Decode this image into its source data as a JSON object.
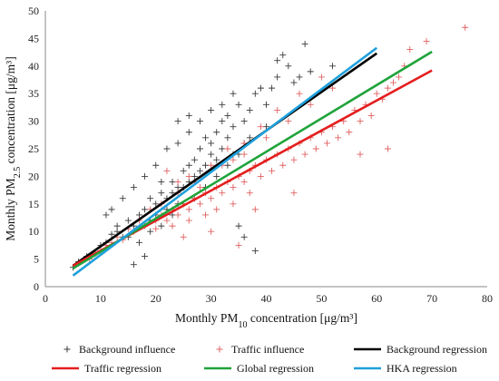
{
  "chart_data": {
    "type": "scatter",
    "title": "",
    "xlabel": {
      "prefix": "Monthly PM",
      "sub": "10",
      "suffix": " concentration [μg/m³]"
    },
    "ylabel": {
      "prefix": "Monthly PM",
      "sub": "2.5",
      "suffix": " concentration [μg/m³]"
    },
    "xlim": [
      0,
      80
    ],
    "ylim": [
      0,
      50
    ],
    "xticks": [
      0,
      10,
      20,
      30,
      40,
      50,
      60,
      70,
      80
    ],
    "yticks": [
      0,
      5,
      10,
      15,
      20,
      25,
      30,
      35,
      40,
      45,
      50
    ],
    "grid": false,
    "legend_position": "bottom",
    "series": [
      {
        "name": "Background influence",
        "kind": "points",
        "marker": "plus",
        "color": "#3a3a3a",
        "points": [
          [
            5,
            3.5
          ],
          [
            6,
            4.5
          ],
          [
            7.5,
            5.5
          ],
          [
            9,
            6
          ],
          [
            10,
            7.5
          ],
          [
            11,
            8
          ],
          [
            12,
            9.5
          ],
          [
            13,
            10
          ],
          [
            14,
            9
          ],
          [
            15,
            12
          ],
          [
            16,
            11
          ],
          [
            17,
            13
          ],
          [
            18,
            14
          ],
          [
            19,
            12
          ],
          [
            20,
            15
          ],
          [
            21,
            17
          ],
          [
            22,
            16
          ],
          [
            23,
            19
          ],
          [
            24,
            18
          ],
          [
            25,
            21
          ],
          [
            26,
            22
          ],
          [
            27,
            20
          ],
          [
            28,
            25
          ],
          [
            29,
            27
          ],
          [
            30,
            24
          ],
          [
            31,
            28
          ],
          [
            32,
            30
          ],
          [
            33,
            31
          ],
          [
            34,
            29
          ],
          [
            35,
            33
          ],
          [
            36,
            30
          ],
          [
            38,
            35
          ],
          [
            40,
            33
          ],
          [
            42,
            38
          ],
          [
            44,
            40
          ],
          [
            46,
            38
          ],
          [
            47,
            44
          ],
          [
            43,
            42
          ],
          [
            39,
            36
          ],
          [
            37,
            32
          ],
          [
            36,
            26
          ],
          [
            34,
            35
          ],
          [
            32,
            33
          ],
          [
            30,
            32
          ],
          [
            28,
            30
          ],
          [
            26,
            28
          ],
          [
            24,
            26
          ],
          [
            22,
            25
          ],
          [
            20,
            22
          ],
          [
            18,
            20
          ],
          [
            16,
            18
          ],
          [
            14,
            16
          ],
          [
            12,
            14
          ],
          [
            11,
            13
          ],
          [
            13,
            11
          ],
          [
            15,
            9
          ],
          [
            17,
            8
          ],
          [
            19,
            10
          ],
          [
            21,
            11
          ],
          [
            23,
            13
          ],
          [
            25,
            15
          ],
          [
            27,
            16
          ],
          [
            29,
            18
          ],
          [
            31,
            20
          ],
          [
            33,
            22
          ],
          [
            35,
            24
          ],
          [
            37,
            27
          ],
          [
            40,
            29
          ],
          [
            41,
            36
          ],
          [
            45,
            37
          ],
          [
            48,
            39
          ],
          [
            52,
            40
          ],
          [
            38,
            6.5
          ],
          [
            36,
            9
          ],
          [
            35,
            11
          ],
          [
            16,
            4
          ],
          [
            18,
            5.5
          ],
          [
            24,
            30
          ],
          [
            26,
            31
          ],
          [
            42,
            41
          ],
          [
            19,
            16
          ],
          [
            20,
            13
          ],
          [
            21,
            19
          ],
          [
            22,
            14
          ],
          [
            23,
            17
          ],
          [
            24,
            15
          ],
          [
            25,
            18
          ],
          [
            26,
            19
          ],
          [
            27,
            23
          ],
          [
            28,
            21
          ],
          [
            29,
            22
          ],
          [
            30,
            26
          ],
          [
            31,
            23
          ],
          [
            32,
            25
          ],
          [
            33,
            27
          ],
          [
            34,
            24
          ]
        ]
      },
      {
        "name": "Traffic influence",
        "kind": "points",
        "marker": "plus",
        "color": "#e06060",
        "points": [
          [
            8,
            5
          ],
          [
            10,
            6.5
          ],
          [
            12,
            8
          ],
          [
            14,
            8.5
          ],
          [
            16,
            10
          ],
          [
            18,
            11
          ],
          [
            20,
            12
          ],
          [
            21,
            13
          ],
          [
            22,
            12
          ],
          [
            23,
            14
          ],
          [
            24,
            13
          ],
          [
            25,
            15
          ],
          [
            26,
            14
          ],
          [
            27,
            16
          ],
          [
            28,
            15
          ],
          [
            29,
            17
          ],
          [
            30,
            16
          ],
          [
            31,
            18
          ],
          [
            32,
            17
          ],
          [
            33,
            19
          ],
          [
            34,
            18
          ],
          [
            35,
            20
          ],
          [
            36,
            19
          ],
          [
            37,
            21
          ],
          [
            38,
            22
          ],
          [
            39,
            20
          ],
          [
            40,
            23
          ],
          [
            41,
            21
          ],
          [
            42,
            24
          ],
          [
            43,
            22
          ],
          [
            44,
            25
          ],
          [
            45,
            23
          ],
          [
            46,
            26
          ],
          [
            47,
            24
          ],
          [
            48,
            27
          ],
          [
            49,
            25
          ],
          [
            50,
            28
          ],
          [
            51,
            26
          ],
          [
            52,
            29
          ],
          [
            53,
            27
          ],
          [
            54,
            30
          ],
          [
            55,
            28
          ],
          [
            56,
            32
          ],
          [
            57,
            30
          ],
          [
            58,
            33
          ],
          [
            59,
            31
          ],
          [
            60,
            35
          ],
          [
            61,
            34
          ],
          [
            62,
            36
          ],
          [
            63,
            37
          ],
          [
            64,
            38
          ],
          [
            65,
            40
          ],
          [
            66,
            43
          ],
          [
            69,
            44.5
          ],
          [
            76,
            47
          ],
          [
            62,
            25
          ],
          [
            57,
            24
          ],
          [
            45,
            17
          ],
          [
            38,
            14
          ],
          [
            35,
            7.5
          ],
          [
            30,
            10
          ],
          [
            25,
            9
          ],
          [
            22,
            21
          ],
          [
            24,
            19
          ],
          [
            26,
            20
          ],
          [
            28,
            18
          ],
          [
            32,
            22
          ],
          [
            34,
            23
          ],
          [
            36,
            24
          ],
          [
            40,
            27
          ],
          [
            44,
            30
          ],
          [
            48,
            33
          ],
          [
            50,
            38
          ],
          [
            52,
            36
          ],
          [
            46,
            35
          ],
          [
            42,
            32
          ],
          [
            39,
            29
          ],
          [
            36,
            26
          ],
          [
            33,
            25
          ],
          [
            30,
            22
          ],
          [
            27,
            19
          ],
          [
            24,
            17
          ],
          [
            21,
            15
          ],
          [
            19,
            14
          ],
          [
            17,
            12
          ],
          [
            15,
            10.5
          ],
          [
            13,
            9
          ],
          [
            11,
            7.5
          ],
          [
            9,
            6
          ],
          [
            20,
            10.5
          ],
          [
            23,
            11
          ],
          [
            26,
            12
          ],
          [
            29,
            13
          ],
          [
            31,
            14
          ],
          [
            34,
            15
          ],
          [
            37,
            17
          ]
        ]
      },
      {
        "name": "Background regression",
        "kind": "line",
        "color": "#000000",
        "x": [
          5,
          60
        ],
        "y": [
          3.8,
          42.3
        ]
      },
      {
        "name": "Traffic regression",
        "kind": "line",
        "color": "#e41e1e",
        "x": [
          5,
          70
        ],
        "y": [
          3.8,
          39.2
        ]
      },
      {
        "name": "Global regression",
        "kind": "line",
        "color": "#1fa33a",
        "x": [
          5,
          70
        ],
        "y": [
          3.3,
          42.6
        ]
      },
      {
        "name": "HKA regression",
        "kind": "line",
        "color": "#1fa0dc",
        "x": [
          5,
          60
        ],
        "y": [
          2.0,
          43.3
        ]
      }
    ],
    "legend": [
      [
        "Background influence",
        "Traffic influence",
        "Background regression"
      ],
      [
        "Traffic regression",
        "Global regression",
        "HKA regression"
      ]
    ]
  }
}
